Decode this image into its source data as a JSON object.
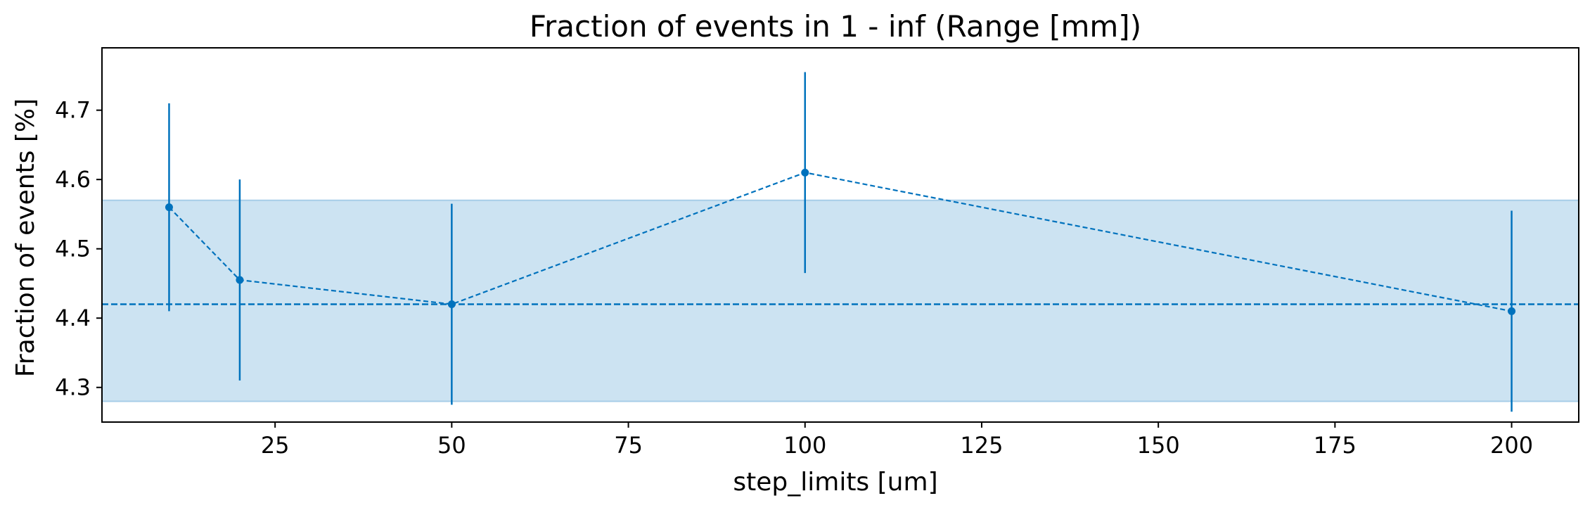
{
  "chart_data": {
    "type": "scatter",
    "title": "Fraction of events in 1 - inf (Range [mm])",
    "xlabel": "step_limits [um]",
    "ylabel": "Fraction of events [%]",
    "xlim": [
      0.5,
      209.5
    ],
    "ylim": [
      4.25,
      4.79
    ],
    "xticks": [
      25,
      50,
      75,
      100,
      125,
      150,
      175,
      200
    ],
    "xtick_labels": [
      "25",
      "50",
      "75",
      "100",
      "125",
      "150",
      "175",
      "200"
    ],
    "yticks": [
      4.3,
      4.4,
      4.5,
      4.6,
      4.7
    ],
    "ytick_labels": [
      "4.3",
      "4.4",
      "4.5",
      "4.6",
      "4.7"
    ],
    "grid": false,
    "legend": "none",
    "series": [
      {
        "x": [
          10,
          20,
          50,
          100,
          200
        ],
        "y": [
          4.56,
          4.455,
          4.42,
          4.61,
          4.41
        ],
        "yerr": [
          0.15,
          0.145,
          0.145,
          0.145,
          0.145
        ],
        "line_style": "dashed",
        "marker": "circle",
        "color": "#0072bd"
      }
    ],
    "reference_line": {
      "y": 4.42,
      "style": "dashed",
      "color": "#0072bd"
    },
    "band": {
      "y_low": 4.28,
      "y_high": 4.57,
      "color": "#cce3f2",
      "edge_color": "#a7cde8"
    }
  }
}
